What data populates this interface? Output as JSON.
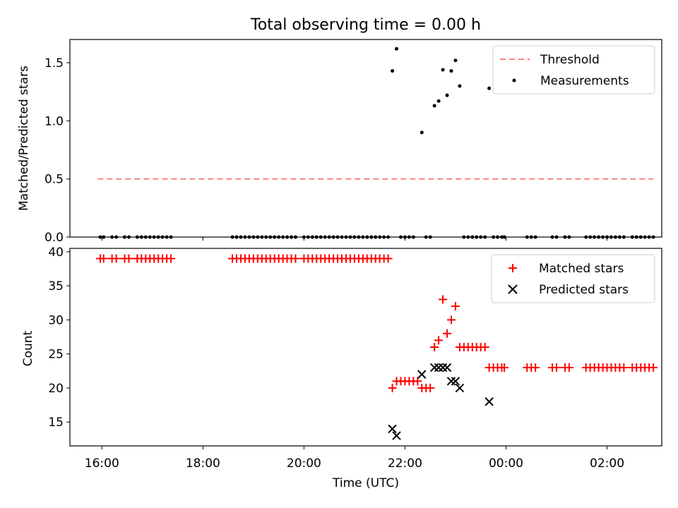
{
  "chart_data": [
    {
      "type": "scatter",
      "title": "Total observing time = 0.00 h",
      "xlabel": "",
      "ylabel": "Matched/Predicted stars",
      "xlim": [
        "15:22",
        "03:05"
      ],
      "ylim": [
        0,
        1.7
      ],
      "yticks": [
        "0.0",
        "0.5",
        "1.0",
        "1.5"
      ],
      "grid": false,
      "legend_position": "top-right",
      "series": [
        {
          "name": "Threshold",
          "kind": "dashed-line",
          "color": "#ff7f7f",
          "x": [
            "15:55",
            "02:55"
          ],
          "y": [
            0.5,
            0.5
          ]
        },
        {
          "name": "Measurements",
          "kind": "dots",
          "color": "#000000",
          "points": [
            [
              "15:58",
              0
            ],
            [
              "16:02",
              0
            ],
            [
              "16:12",
              0
            ],
            [
              "16:17",
              0
            ],
            [
              "16:27",
              0
            ],
            [
              "16:32",
              0
            ],
            [
              "16:42",
              0
            ],
            [
              "16:47",
              0
            ],
            [
              "16:52",
              0
            ],
            [
              "16:57",
              0
            ],
            [
              "17:02",
              0
            ],
            [
              "17:07",
              0
            ],
            [
              "17:12",
              0
            ],
            [
              "17:17",
              0
            ],
            [
              "17:22",
              0
            ],
            [
              "18:35",
              0
            ],
            [
              "18:40",
              0
            ],
            [
              "18:45",
              0
            ],
            [
              "18:50",
              0
            ],
            [
              "18:55",
              0
            ],
            [
              "19:00",
              0
            ],
            [
              "19:05",
              0
            ],
            [
              "19:10",
              0
            ],
            [
              "19:15",
              0
            ],
            [
              "19:20",
              0
            ],
            [
              "19:25",
              0
            ],
            [
              "19:30",
              0
            ],
            [
              "19:35",
              0
            ],
            [
              "19:40",
              0
            ],
            [
              "19:45",
              0
            ],
            [
              "19:50",
              0
            ],
            [
              "20:00",
              0
            ],
            [
              "20:05",
              0
            ],
            [
              "20:10",
              0
            ],
            [
              "20:15",
              0
            ],
            [
              "20:20",
              0
            ],
            [
              "20:25",
              0
            ],
            [
              "20:30",
              0
            ],
            [
              "20:35",
              0
            ],
            [
              "20:40",
              0
            ],
            [
              "20:45",
              0
            ],
            [
              "20:50",
              0
            ],
            [
              "20:55",
              0
            ],
            [
              "21:00",
              0
            ],
            [
              "21:05",
              0
            ],
            [
              "21:10",
              0
            ],
            [
              "21:15",
              0
            ],
            [
              "21:20",
              0
            ],
            [
              "21:25",
              0
            ],
            [
              "21:30",
              0
            ],
            [
              "21:35",
              0
            ],
            [
              "21:40",
              0
            ],
            [
              "21:45",
              1.43
            ],
            [
              "21:50",
              1.62
            ],
            [
              "21:55",
              0
            ],
            [
              "22:00",
              0
            ],
            [
              "22:05",
              0
            ],
            [
              "22:10",
              0
            ],
            [
              "22:20",
              0.9
            ],
            [
              "22:25",
              0
            ],
            [
              "22:30",
              0
            ],
            [
              "22:35",
              1.13
            ],
            [
              "22:40",
              1.17
            ],
            [
              "22:45",
              1.44
            ],
            [
              "22:50",
              1.22
            ],
            [
              "22:55",
              1.43
            ],
            [
              "23:00",
              1.52
            ],
            [
              "23:05",
              1.3
            ],
            [
              "23:10",
              0
            ],
            [
              "23:15",
              0
            ],
            [
              "23:20",
              0
            ],
            [
              "23:25",
              0
            ],
            [
              "23:30",
              0
            ],
            [
              "23:35",
              0
            ],
            [
              "23:40",
              1.28
            ],
            [
              "23:45",
              0
            ],
            [
              "23:50",
              0
            ],
            [
              "23:55",
              0
            ],
            [
              "23:58",
              0
            ],
            [
              "00:25",
              0
            ],
            [
              "00:30",
              0
            ],
            [
              "00:35",
              0
            ],
            [
              "00:55",
              0
            ],
            [
              "01:00",
              0
            ],
            [
              "01:10",
              0
            ],
            [
              "01:15",
              0
            ],
            [
              "01:35",
              0
            ],
            [
              "01:40",
              0
            ],
            [
              "01:45",
              0
            ],
            [
              "01:50",
              0
            ],
            [
              "01:55",
              0
            ],
            [
              "02:00",
              0
            ],
            [
              "02:05",
              0
            ],
            [
              "02:10",
              0
            ],
            [
              "02:15",
              0
            ],
            [
              "02:20",
              0
            ],
            [
              "02:30",
              0
            ],
            [
              "02:35",
              0
            ],
            [
              "02:40",
              0
            ],
            [
              "02:45",
              0
            ],
            [
              "02:50",
              0
            ],
            [
              "02:55",
              0
            ]
          ]
        }
      ]
    },
    {
      "type": "scatter",
      "xlabel": "Time (UTC)",
      "ylabel": "Count",
      "xlim": [
        "15:22",
        "03:05"
      ],
      "ylim": [
        11.5,
        40.5
      ],
      "xticks": [
        "16:00",
        "18:00",
        "20:00",
        "22:00",
        "00:00",
        "02:00"
      ],
      "yticks": [
        "15",
        "20",
        "25",
        "30",
        "35",
        "40"
      ],
      "grid": false,
      "legend_position": "top-right",
      "series": [
        {
          "name": "Matched stars",
          "marker": "plus",
          "color": "#ff0000",
          "points": [
            [
              "15:58",
              39
            ],
            [
              "16:02",
              39
            ],
            [
              "16:12",
              39
            ],
            [
              "16:17",
              39
            ],
            [
              "16:27",
              39
            ],
            [
              "16:32",
              39
            ],
            [
              "16:42",
              39
            ],
            [
              "16:47",
              39
            ],
            [
              "16:52",
              39
            ],
            [
              "16:57",
              39
            ],
            [
              "17:02",
              39
            ],
            [
              "17:07",
              39
            ],
            [
              "17:12",
              39
            ],
            [
              "17:17",
              39
            ],
            [
              "17:22",
              39
            ],
            [
              "18:35",
              39
            ],
            [
              "18:40",
              39
            ],
            [
              "18:45",
              39
            ],
            [
              "18:50",
              39
            ],
            [
              "18:55",
              39
            ],
            [
              "19:00",
              39
            ],
            [
              "19:05",
              39
            ],
            [
              "19:10",
              39
            ],
            [
              "19:15",
              39
            ],
            [
              "19:20",
              39
            ],
            [
              "19:25",
              39
            ],
            [
              "19:30",
              39
            ],
            [
              "19:35",
              39
            ],
            [
              "19:40",
              39
            ],
            [
              "19:45",
              39
            ],
            [
              "19:50",
              39
            ],
            [
              "20:00",
              39
            ],
            [
              "20:05",
              39
            ],
            [
              "20:10",
              39
            ],
            [
              "20:15",
              39
            ],
            [
              "20:20",
              39
            ],
            [
              "20:25",
              39
            ],
            [
              "20:30",
              39
            ],
            [
              "20:35",
              39
            ],
            [
              "20:40",
              39
            ],
            [
              "20:45",
              39
            ],
            [
              "20:50",
              39
            ],
            [
              "20:55",
              39
            ],
            [
              "21:00",
              39
            ],
            [
              "21:05",
              39
            ],
            [
              "21:10",
              39
            ],
            [
              "21:15",
              39
            ],
            [
              "21:20",
              39
            ],
            [
              "21:25",
              39
            ],
            [
              "21:30",
              39
            ],
            [
              "21:35",
              39
            ],
            [
              "21:40",
              39
            ],
            [
              "21:45",
              20
            ],
            [
              "21:50",
              21
            ],
            [
              "21:55",
              21
            ],
            [
              "22:00",
              21
            ],
            [
              "22:05",
              21
            ],
            [
              "22:10",
              21
            ],
            [
              "22:15",
              21
            ],
            [
              "22:20",
              20
            ],
            [
              "22:25",
              20
            ],
            [
              "22:30",
              20
            ],
            [
              "22:35",
              26
            ],
            [
              "22:40",
              27
            ],
            [
              "22:45",
              33
            ],
            [
              "22:50",
              28
            ],
            [
              "22:55",
              30
            ],
            [
              "23:00",
              32
            ],
            [
              "23:05",
              26
            ],
            [
              "23:10",
              26
            ],
            [
              "23:15",
              26
            ],
            [
              "23:20",
              26
            ],
            [
              "23:25",
              26
            ],
            [
              "23:30",
              26
            ],
            [
              "23:35",
              26
            ],
            [
              "23:40",
              23
            ],
            [
              "23:45",
              23
            ],
            [
              "23:50",
              23
            ],
            [
              "23:55",
              23
            ],
            [
              "23:58",
              23
            ],
            [
              "00:25",
              23
            ],
            [
              "00:30",
              23
            ],
            [
              "00:35",
              23
            ],
            [
              "00:55",
              23
            ],
            [
              "01:00",
              23
            ],
            [
              "01:10",
              23
            ],
            [
              "01:15",
              23
            ],
            [
              "01:35",
              23
            ],
            [
              "01:40",
              23
            ],
            [
              "01:45",
              23
            ],
            [
              "01:50",
              23
            ],
            [
              "01:55",
              23
            ],
            [
              "02:00",
              23
            ],
            [
              "02:05",
              23
            ],
            [
              "02:10",
              23
            ],
            [
              "02:15",
              23
            ],
            [
              "02:20",
              23
            ],
            [
              "02:30",
              23
            ],
            [
              "02:35",
              23
            ],
            [
              "02:40",
              23
            ],
            [
              "02:45",
              23
            ],
            [
              "02:50",
              23
            ],
            [
              "02:55",
              23
            ]
          ]
        },
        {
          "name": "Predicted stars",
          "marker": "x",
          "color": "#000000",
          "points": [
            [
              "21:45",
              14
            ],
            [
              "21:50",
              13
            ],
            [
              "22:20",
              22
            ],
            [
              "22:35",
              23
            ],
            [
              "22:40",
              23
            ],
            [
              "22:45",
              23
            ],
            [
              "22:50",
              23
            ],
            [
              "22:55",
              21
            ],
            [
              "23:00",
              21
            ],
            [
              "23:05",
              20
            ],
            [
              "23:40",
              18
            ]
          ]
        }
      ]
    }
  ]
}
